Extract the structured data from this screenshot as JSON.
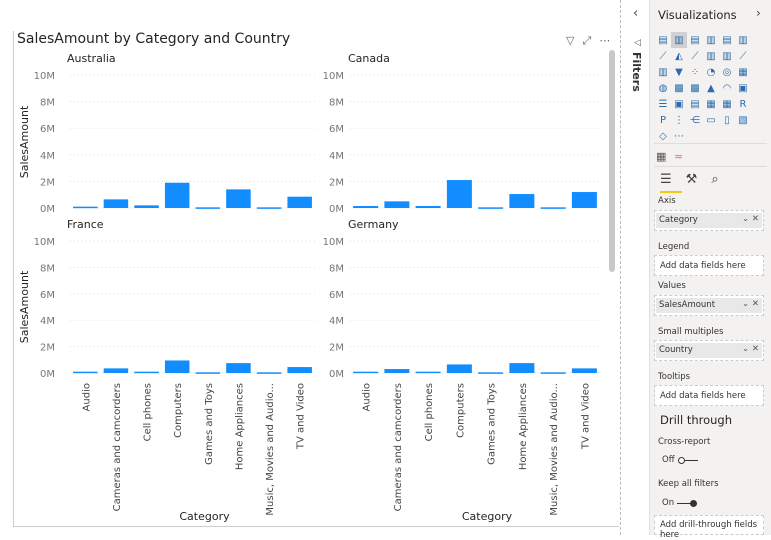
{
  "visual": {
    "title": "SalesAmount by Category and Country",
    "header_icons": [
      "filter-icon",
      "focus-mode-icon",
      "more-options-icon"
    ]
  },
  "filters_pane": {
    "label": "Filters"
  },
  "visualizations": {
    "title": "Visualizations",
    "tabs": [
      "fields-icon",
      "format-icon",
      "analytics-icon"
    ],
    "wells": [
      {
        "label": "Axis",
        "field": "Category"
      },
      {
        "label": "Legend",
        "placeholder": "Add data fields here"
      },
      {
        "label": "Values",
        "field": "SalesAmount"
      },
      {
        "label": "Small multiples",
        "field": "Country"
      },
      {
        "label": "Tooltips",
        "placeholder": "Add data fields here"
      }
    ],
    "drill_through": {
      "title": "Drill through",
      "cross_report": {
        "label": "Cross-report",
        "state": "Off"
      },
      "keep_all_filters": {
        "label": "Keep all filters",
        "state": "On"
      },
      "placeholder": "Add drill-through fields here"
    }
  },
  "chart_data": {
    "type": "bar",
    "title": "SalesAmount by Category and Country",
    "xlabel": "Category",
    "ylabel": "SalesAmount",
    "ylim": [
      0,
      10000000
    ],
    "yticks": [
      "0M",
      "2M",
      "4M",
      "6M",
      "8M",
      "10M"
    ],
    "color": "#118DFF",
    "categories": [
      "Audio",
      "Cameras and camcorders",
      "Cell phones",
      "Computers",
      "Games and Toys",
      "Home Appliances",
      "Music, Movies and Audio...",
      "TV and Video"
    ],
    "panels": [
      {
        "name": "Australia",
        "values": [
          100000,
          650000,
          200000,
          1900000,
          50000,
          1400000,
          50000,
          850000
        ]
      },
      {
        "name": "Canada",
        "values": [
          150000,
          500000,
          150000,
          2100000,
          50000,
          1050000,
          50000,
          1200000
        ]
      },
      {
        "name": "France",
        "values": [
          100000,
          350000,
          100000,
          950000,
          50000,
          750000,
          50000,
          450000
        ]
      },
      {
        "name": "Germany",
        "values": [
          100000,
          300000,
          100000,
          650000,
          50000,
          750000,
          50000,
          350000
        ]
      }
    ]
  }
}
